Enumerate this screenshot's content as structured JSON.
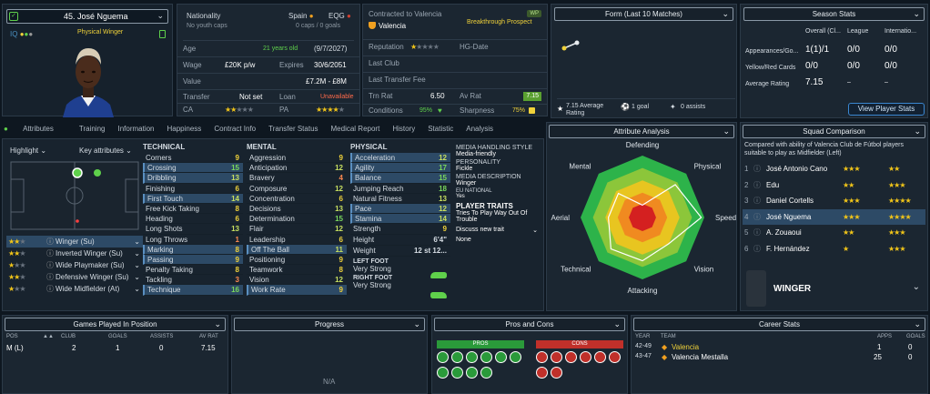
{
  "player": {
    "name": "45. José Nguema",
    "position": "Physical Winger",
    "nationality_label": "Nationality",
    "nationality": "Spain",
    "no_youth_caps": "No youth caps",
    "eqg": "EQG",
    "eqg_caps": "0 caps / 0 goals",
    "age_label": "Age",
    "age": "21 years old",
    "dob": "(9/7/2027)",
    "wage_label": "Wage",
    "wage": "£20K p/w",
    "expires_label": "Expires",
    "expires": "30/6/2051",
    "value_label": "Value",
    "value": "£7.2M - £8M",
    "transfer_label": "Transfer",
    "transfer": "Not set",
    "loan_label": "Loan",
    "loan": "Unavailable",
    "ca_label": "CA",
    "pa_label": "PA"
  },
  "contract": {
    "contracted_to": "Contracted to Valencia",
    "status": "Breakthrough Prospect",
    "club": "Valencia",
    "badge": "WP",
    "reputation_label": "Reputation",
    "hg_label": "HG-Date",
    "last_club_label": "Last Club",
    "last_fee_label": "Last Transfer Fee",
    "trn_label": "Trn Rat",
    "trn": "6.50",
    "av_label": "Av Rat",
    "av": "7.15",
    "conditions_label": "Conditions",
    "conditions": "95%",
    "sharpness_label": "Sharpness",
    "sharpness": "75%"
  },
  "form": {
    "title": "Form (Last 10 Matches)",
    "avg": "7.15 Average Rating",
    "goals": "1 goal",
    "assists": "0 assists"
  },
  "season": {
    "title": "Season Stats",
    "cols": [
      "Overall (Cl...",
      "League",
      "Internatio..."
    ],
    "rows": [
      {
        "label": "Appearances/Go...",
        "v": [
          "1(1)/1",
          "0/0",
          "0/0"
        ]
      },
      {
        "label": "Yellow/Red Cards",
        "v": [
          "0/0",
          "0/0",
          "0/0"
        ]
      },
      {
        "label": "Average Rating",
        "v": [
          "7.15",
          "–",
          "–"
        ]
      }
    ],
    "button": "View Player Stats"
  },
  "tabs": [
    "Attributes",
    "Training",
    "Information",
    "Happiness",
    "Contract Info",
    "Transfer Status",
    "Medical Report",
    "History",
    "Statistic",
    "Analysis"
  ],
  "highlight": {
    "label": "Highlight",
    "key": "Key attributes"
  },
  "roles": [
    {
      "name": "Winger (Su)"
    },
    {
      "name": "Inverted Winger (Su)"
    },
    {
      "name": "Wide Playmaker (Su)"
    },
    {
      "name": "Defensive Winger (Su)"
    },
    {
      "name": "Wide Midfielder (At)"
    }
  ],
  "technical": {
    "title": "TECHNICAL",
    "items": [
      [
        "Corners",
        "9"
      ],
      [
        "Crossing",
        "15"
      ],
      [
        "Dribbling",
        "13"
      ],
      [
        "Finishing",
        "6"
      ],
      [
        "First Touch",
        "14"
      ],
      [
        "Free Kick Taking",
        "8"
      ],
      [
        "Heading",
        "6"
      ],
      [
        "Long Shots",
        "13"
      ],
      [
        "Long Throws",
        "1"
      ],
      [
        "Marking",
        "8"
      ],
      [
        "Passing",
        "9"
      ],
      [
        "Penalty Taking",
        "8"
      ],
      [
        "Tackling",
        "3"
      ],
      [
        "Technique",
        "16"
      ]
    ]
  },
  "mental": {
    "title": "MENTAL",
    "items": [
      [
        "Aggression",
        "9"
      ],
      [
        "Anticipation",
        "12"
      ],
      [
        "Bravery",
        "4"
      ],
      [
        "Composure",
        "12"
      ],
      [
        "Concentration",
        "6"
      ],
      [
        "Decisions",
        "13"
      ],
      [
        "Determination",
        "15"
      ],
      [
        "Flair",
        "12"
      ],
      [
        "Leadership",
        "6"
      ],
      [
        "Off The Ball",
        "11"
      ],
      [
        "Positioning",
        "9"
      ],
      [
        "Teamwork",
        "8"
      ],
      [
        "Vision",
        "12"
      ],
      [
        "Work Rate",
        "9"
      ]
    ]
  },
  "physical": {
    "title": "PHYSICAL",
    "items": [
      [
        "Acceleration",
        "12"
      ],
      [
        "Agility",
        "17"
      ],
      [
        "Balance",
        "15"
      ],
      [
        "Jumping Reach",
        "18"
      ],
      [
        "Natural Fitness",
        "13"
      ],
      [
        "Pace",
        "12"
      ],
      [
        "Stamina",
        "14"
      ],
      [
        "Strength",
        "9"
      ]
    ],
    "height_label": "Height",
    "height": "6'4\"",
    "weight_label": "Weight",
    "weight": "12 st 12...",
    "left_foot_label": "LEFT FOOT",
    "left_foot": "Very Strong",
    "right_foot_label": "RIGHT FOOT",
    "right_foot": "Very Strong"
  },
  "media": {
    "handling_title": "MEDIA HANDLING STYLE",
    "handling": "Media-friendly",
    "personality_title": "PERSONALITY",
    "personality": "Fickle",
    "desc_title": "MEDIA DESCRIPTION",
    "desc": "Winger",
    "eu_title": "EU NATIONAL",
    "eu": "Yes",
    "traits_title": "PLAYER TRAITS",
    "trait": "Tries To Play Way Out Of Trouble",
    "discuss": "Discuss new trait",
    "none": "None"
  },
  "analysis": {
    "title": "Attribute Analysis",
    "axes": [
      "Defending",
      "Physical",
      "Speed",
      "Vision",
      "Attacking",
      "Technical",
      "Aerial",
      "Mental"
    ],
    "values": [
      0.2,
      0.75,
      0.95,
      0.6,
      0.7,
      0.72,
      0.55,
      0.55
    ]
  },
  "squad": {
    "title": "Squad Comparison",
    "desc": "Compared with ability of Valencia Club de Fútbol players suitable to play as Midfielder (Left)",
    "players": [
      {
        "n": "1",
        "name": "José Antonio Cano"
      },
      {
        "n": "2",
        "name": "Edu"
      },
      {
        "n": "3",
        "name": "Daniel Cortells"
      },
      {
        "n": "4",
        "name": "José Nguema"
      },
      {
        "n": "5",
        "name": "A. Zouaoui"
      },
      {
        "n": "6",
        "name": "F. Hernández"
      }
    ],
    "role": "WINGER"
  },
  "games": {
    "title": "Games Played In Position",
    "cols": [
      "POS",
      "CLUB",
      "GOALS",
      "ASSISTS",
      "AV RAT"
    ],
    "row": [
      "M (L)",
      "2",
      "1",
      "0",
      "7.15"
    ]
  },
  "progress": {
    "title": "Progress",
    "na": "N/A"
  },
  "proscons": {
    "title": "Pros and Cons",
    "pros": "PROS",
    "cons": "CONS"
  },
  "career": {
    "title": "Career Stats",
    "cols": [
      "YEAR",
      "TEAM",
      "APPS",
      "GOALS"
    ],
    "rows": [
      [
        "42-49",
        "Valencia",
        "1",
        "0"
      ],
      [
        "43-47",
        "Valencia Mestalla",
        "25",
        "0"
      ]
    ]
  },
  "colors": {
    "accent": "#3a87d0",
    "green": "#5fd04b",
    "red": "#ff6a4a",
    "gold": "#f0c419"
  }
}
